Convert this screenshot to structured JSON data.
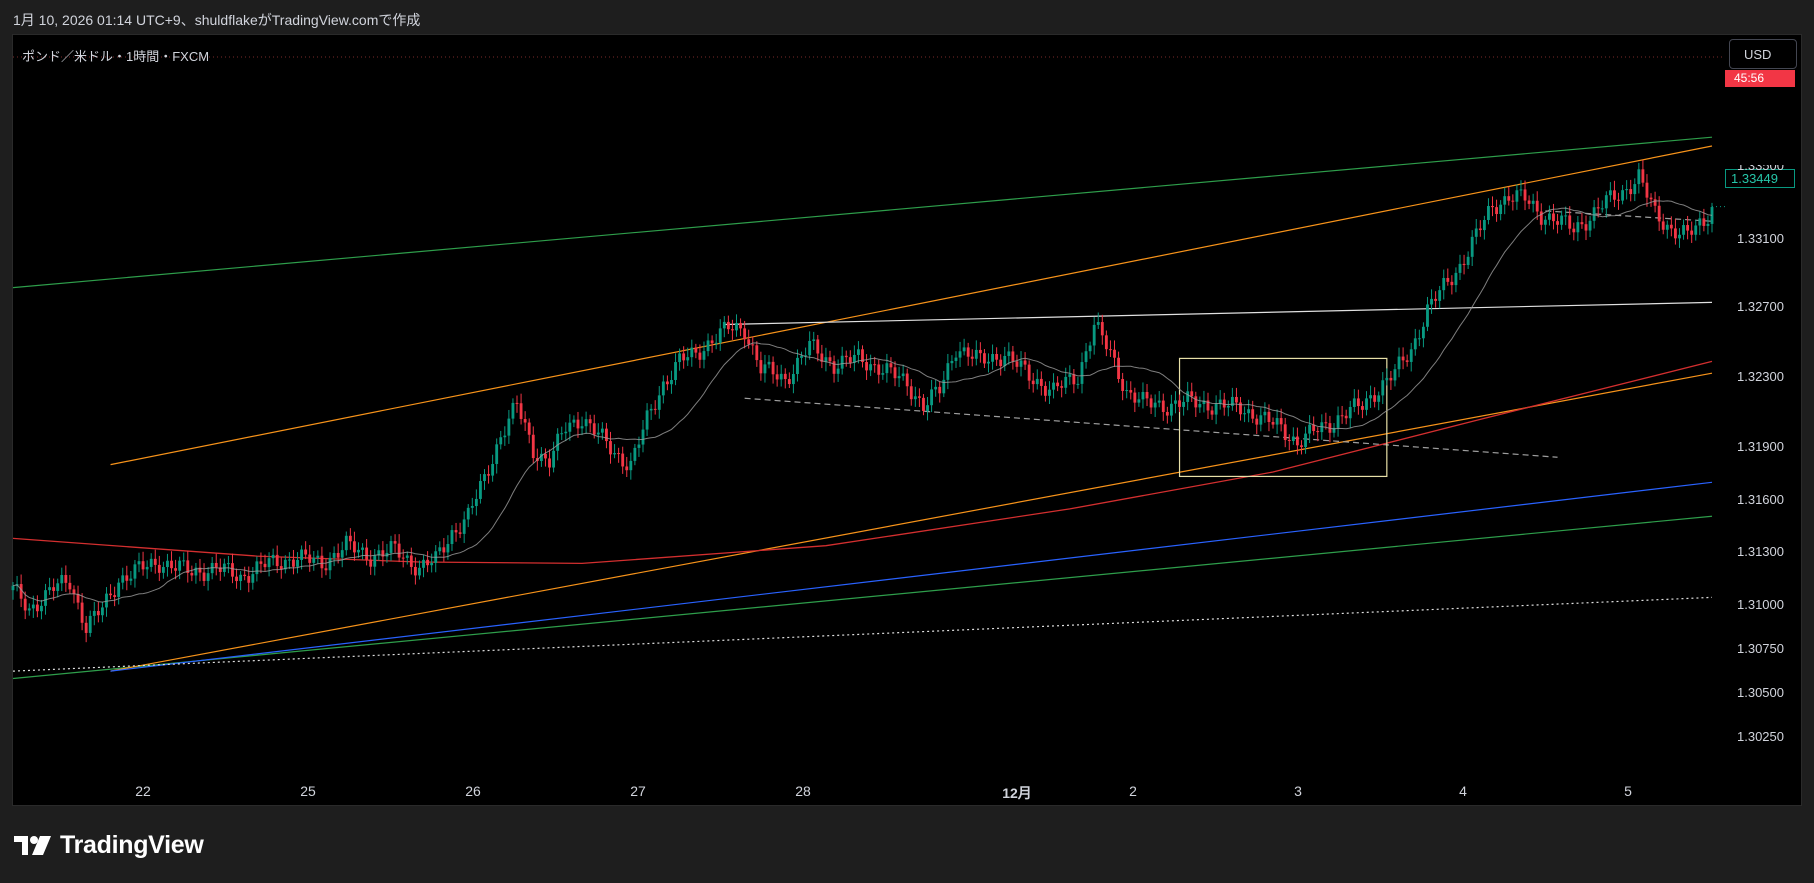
{
  "header": {
    "caption": "1月 10, 2026 01:14 UTC+9、shuldflakeがTradingView.comで作成"
  },
  "chart": {
    "symbol_label": "ポンド／米ドル・1時間・FXCM",
    "currency_button": "USD",
    "countdown": "45:56",
    "last_price": "1.33449",
    "partial_top_tick": "1.33500"
  },
  "footer": {
    "logo_text": "TradingView"
  },
  "colors": {
    "background": "#000000",
    "up": "#089981",
    "down": "#f23645",
    "channel_green": "#2e9e4b",
    "channel_orange": "#f7931a",
    "trend_blue": "#2962ff",
    "ma_red": "#d32f2f",
    "ma_gray": "#9e9e9e",
    "resistance_white": "#e0e0e0"
  },
  "chart_data": {
    "type": "candlestick",
    "title": "ポンド／米ドル・1時間・FXCM",
    "timeframe": "1時間",
    "y_axis": {
      "ticks": [
        "1.30250",
        "1.30500",
        "1.30750",
        "1.31000",
        "1.31300",
        "1.31600",
        "1.31900",
        "1.32300",
        "1.32700",
        "1.33100"
      ],
      "range": [
        1.3005,
        1.3405
      ]
    },
    "x_axis": {
      "ticks": [
        "22",
        "25",
        "26",
        "27",
        "28",
        "12月",
        "2",
        "3",
        "4",
        "5"
      ]
    },
    "last_price": 1.33449,
    "bar_countdown": "45:56",
    "grid": false,
    "ohlc_anchor_path": [
      [
        0,
        1.3085
      ],
      [
        4,
        1.3072
      ],
      [
        10,
        1.3086
      ],
      [
        14,
        1.3091
      ],
      [
        18,
        1.306
      ],
      [
        22,
        1.3072
      ],
      [
        26,
        1.3092
      ],
      [
        32,
        1.31
      ],
      [
        36,
        1.3104
      ],
      [
        44,
        1.3097
      ],
      [
        50,
        1.31
      ],
      [
        56,
        1.3094
      ],
      [
        62,
        1.3102
      ],
      [
        70,
        1.3107
      ],
      [
        76,
        1.3103
      ],
      [
        82,
        1.3115
      ],
      [
        88,
        1.3108
      ],
      [
        94,
        1.3112
      ],
      [
        100,
        1.31
      ],
      [
        104,
        1.3105
      ],
      [
        108,
        1.3124
      ],
      [
        112,
        1.3135
      ],
      [
        116,
        1.316
      ],
      [
        120,
        1.319
      ],
      [
        124,
        1.321
      ],
      [
        128,
        1.318
      ],
      [
        132,
        1.3172
      ],
      [
        136,
        1.3195
      ],
      [
        140,
        1.3202
      ],
      [
        144,
        1.319
      ],
      [
        148,
        1.3178
      ],
      [
        152,
        1.317
      ],
      [
        156,
        1.32
      ],
      [
        160,
        1.3225
      ],
      [
        164,
        1.324
      ],
      [
        168,
        1.3245
      ],
      [
        172,
        1.3255
      ],
      [
        176,
        1.3262
      ],
      [
        180,
        1.3262
      ],
      [
        184,
        1.3235
      ],
      [
        190,
        1.3228
      ],
      [
        196,
        1.325
      ],
      [
        202,
        1.3238
      ],
      [
        208,
        1.3242
      ],
      [
        214,
        1.3235
      ],
      [
        220,
        1.3225
      ],
      [
        224,
        1.321
      ],
      [
        228,
        1.322
      ],
      [
        232,
        1.325
      ],
      [
        238,
        1.324
      ],
      [
        244,
        1.3245
      ],
      [
        250,
        1.323
      ],
      [
        256,
        1.322
      ],
      [
        262,
        1.323
      ],
      [
        266,
        1.3265
      ],
      [
        270,
        1.3245
      ],
      [
        274,
        1.322
      ],
      [
        278,
        1.3212
      ],
      [
        284,
        1.321
      ],
      [
        290,
        1.3213
      ],
      [
        296,
        1.321
      ],
      [
        302,
        1.3209
      ],
      [
        308,
        1.32
      ],
      [
        312,
        1.3195
      ],
      [
        316,
        1.3185
      ],
      [
        320,
        1.3192
      ],
      [
        324,
        1.3198
      ],
      [
        328,
        1.3205
      ],
      [
        332,
        1.321
      ],
      [
        336,
        1.3222
      ],
      [
        340,
        1.3232
      ],
      [
        344,
        1.3248
      ],
      [
        348,
        1.3275
      ],
      [
        352,
        1.329
      ],
      [
        356,
        1.3305
      ],
      [
        360,
        1.3325
      ],
      [
        364,
        1.3345
      ],
      [
        368,
        1.3352
      ],
      [
        372,
        1.335
      ],
      [
        376,
        1.334
      ],
      [
        380,
        1.3335
      ],
      [
        384,
        1.333
      ],
      [
        388,
        1.3338
      ],
      [
        392,
        1.3348
      ],
      [
        396,
        1.3355
      ],
      [
        400,
        1.3365
      ],
      [
        404,
        1.334
      ],
      [
        408,
        1.333
      ],
      [
        412,
        1.3325
      ],
      [
        416,
        1.3335
      ],
      [
        418,
        1.3345
      ]
    ],
    "overlays": [
      {
        "kind": "trendline",
        "color": "channel_green",
        "style": "solid",
        "from": [
          0,
          1.3025
        ],
        "to": [
          418,
          1.3135
        ]
      },
      {
        "kind": "trendline",
        "color": "channel_green",
        "style": "solid",
        "from": [
          0,
          1.329
        ],
        "to": [
          418,
          1.3392
        ]
      },
      {
        "kind": "trendline",
        "color": "channel_orange",
        "style": "solid",
        "from": [
          24,
          1.303
        ],
        "to": [
          418,
          1.3232
        ]
      },
      {
        "kind": "trendline",
        "color": "channel_orange",
        "style": "solid",
        "from": [
          24,
          1.317
        ],
        "to": [
          418,
          1.3386
        ]
      },
      {
        "kind": "trendline",
        "color": "trend_blue",
        "style": "solid",
        "from": [
          24,
          1.303
        ],
        "to": [
          418,
          1.3158
        ]
      },
      {
        "kind": "trendline",
        "color": "resistance_white",
        "style": "dotted",
        "from": [
          0,
          1.303
        ],
        "to": [
          418,
          1.308
        ]
      },
      {
        "kind": "trendline",
        "color": "resistance_white",
        "style": "solid",
        "from": [
          175,
          1.3265
        ],
        "to": [
          418,
          1.328
        ]
      },
      {
        "kind": "trendline",
        "color": "ma_gray",
        "style": "dashed",
        "from": [
          180,
          1.3215
        ],
        "to": [
          380,
          1.3175
        ]
      },
      {
        "kind": "trendline",
        "color": "ma_gray",
        "style": "dashed",
        "from": [
          377,
          1.3342
        ],
        "to": [
          418,
          1.3335
        ]
      },
      {
        "kind": "moving_average",
        "color": "ma_red",
        "points": [
          [
            0,
            1.312
          ],
          [
            60,
            1.3108
          ],
          [
            100,
            1.3104
          ],
          [
            140,
            1.3103
          ],
          [
            200,
            1.3115
          ],
          [
            260,
            1.314
          ],
          [
            310,
            1.3165
          ],
          [
            360,
            1.32
          ],
          [
            418,
            1.324
          ]
        ]
      },
      {
        "kind": "rectangle",
        "color": "resistance_white",
        "from": [
          287,
          1.3162
        ],
        "to": [
          338,
          1.3242
        ]
      }
    ]
  }
}
